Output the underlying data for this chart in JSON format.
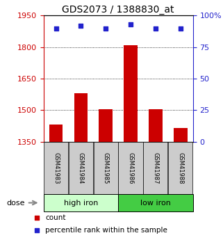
{
  "title": "GDS2073 / 1388830_at",
  "categories": [
    "GSM41983",
    "GSM41984",
    "GSM41985",
    "GSM41986",
    "GSM41987",
    "GSM41988"
  ],
  "bar_values": [
    1430,
    1580,
    1505,
    1810,
    1505,
    1415
  ],
  "percentile_values": [
    90,
    92,
    90,
    93,
    90,
    90
  ],
  "ylim_left": [
    1350,
    1950
  ],
  "ylim_right": [
    0,
    100
  ],
  "yticks_left": [
    1350,
    1500,
    1650,
    1800,
    1950
  ],
  "yticks_right": [
    0,
    25,
    50,
    75,
    100
  ],
  "grid_lines": [
    1500,
    1650,
    1800
  ],
  "bar_color": "#cc0000",
  "dot_color": "#2222cc",
  "group1_label": "high iron",
  "group2_label": "low iron",
  "group1_color": "#ccffcc",
  "group2_color": "#44cc44",
  "ylabel_left_color": "#cc0000",
  "ylabel_right_color": "#2222cc",
  "legend_count_label": "count",
  "legend_percentile_label": "percentile rank within the sample",
  "dose_label": "dose",
  "background_color": "#ffffff",
  "tick_label_bg": "#cccccc",
  "title_fontsize": 10,
  "tick_fontsize": 8,
  "bar_width": 0.55
}
